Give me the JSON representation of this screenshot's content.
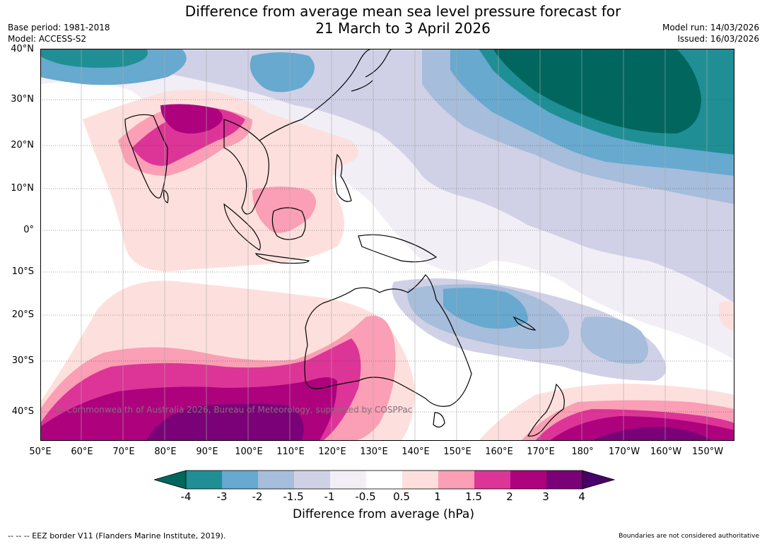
{
  "title_line1": "Difference from average mean sea level pressure forecast for",
  "title_line2": "21 March to 3 April 2026",
  "base_period": "Base period: 1981-2018",
  "model": "Model: ACCESS-S2",
  "model_run": "Model run: 14/03/2026",
  "issued": "Issued: 16/03/2026",
  "lat_labels": [
    "40°N",
    "30°N",
    "20°N",
    "10°N",
    "0°",
    "10°S",
    "20°S",
    "30°S",
    "40°S"
  ],
  "lon_labels": [
    "50°E",
    "60°E",
    "70°E",
    "80°E",
    "90°E",
    "100°E",
    "110°E",
    "120°E",
    "130°E",
    "140°E",
    "150°E",
    "160°E",
    "170°E",
    "180°",
    "170°W",
    "160°W",
    "150°W"
  ],
  "watermark": "© Commonwealth of Australia 2026, Bureau of Meteorology, supported by COSPPac",
  "colorbar": {
    "ticks": [
      "-4",
      "-3",
      "-2",
      "-1.5",
      "-1",
      "-0.5",
      "0.5",
      "1",
      "1.5",
      "2",
      "3",
      "4"
    ],
    "colors": [
      "#00665e",
      "#1f8f95",
      "#67a9cf",
      "#a6bddb",
      "#d0d1e6",
      "#f1eef6",
      "#ffffff",
      "#fde0dd",
      "#fa9fb5",
      "#dd3497",
      "#ae017e",
      "#7a0177",
      "#49006a"
    ],
    "label": "Difference from average (hPa)"
  },
  "footer_left": "--  --  -- EEZ border V11 (Flanders Marine Institute, 2019).",
  "footer_right": "Boundaries are not considered authoritative"
}
